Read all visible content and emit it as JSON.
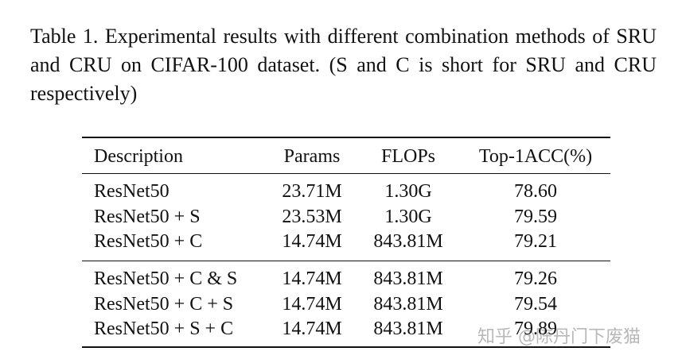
{
  "caption": "Table 1. Experimental results with different combination methods of SRU and CRU on CIFAR-100 dataset.  (S and C is short for SRU and CRU respectively)",
  "table": {
    "header": [
      "Description",
      "Params",
      "FLOPs",
      "Top-1ACC(%)"
    ],
    "groups": [
      [
        [
          "ResNet50",
          "23.71M",
          "1.30G",
          "78.60"
        ],
        [
          "ResNet50 + S",
          "23.53M",
          "1.30G",
          "79.59"
        ],
        [
          "ResNet50 + C",
          "14.74M",
          "843.81M",
          "79.21"
        ]
      ],
      [
        [
          "ResNet50 + C & S",
          "14.74M",
          "843.81M",
          "79.26"
        ],
        [
          "ResNet50 + C + S",
          "14.74M",
          "843.81M",
          "79.54"
        ],
        [
          "ResNet50 + S + C",
          "14.74M",
          "843.81M",
          "79.89"
        ]
      ]
    ]
  },
  "watermark": "知乎 @陈丹门下废猫"
}
